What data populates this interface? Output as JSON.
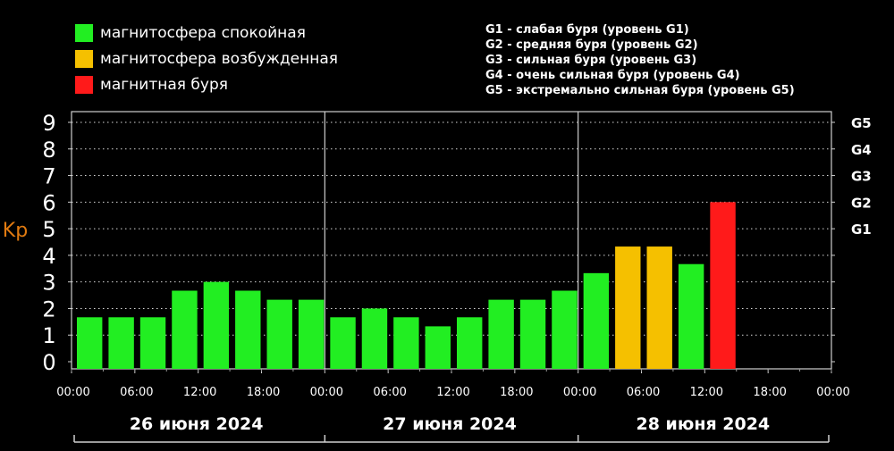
{
  "legend": [
    {
      "label": "магнитосфера спокойная",
      "color": "#22ee22"
    },
    {
      "label": "магнитосфера возбужденная",
      "color": "#f5c000"
    },
    {
      "label": "магнитная буря",
      "color": "#ff1a1a"
    }
  ],
  "storm_levels": [
    "G1 - слабая буря (уровень G1)",
    "G2 - средняя буря (уровень G2)",
    "G3 - сильная буря (уровень G3)",
    "G4 - очень сильная буря (уровень G4)",
    "G5 - экстремально сильная буря (уровень G5)"
  ],
  "chart_data": {
    "type": "bar",
    "ylabel": "Kp",
    "ylim": [
      0,
      9
    ],
    "yticks": [
      "0",
      "1",
      "2",
      "3",
      "4",
      "5",
      "6",
      "7",
      "8",
      "9"
    ],
    "g_levels": [
      {
        "label": "G1",
        "kp": 5
      },
      {
        "label": "G2",
        "kp": 6
      },
      {
        "label": "G3",
        "kp": 7
      },
      {
        "label": "G4",
        "kp": 8
      },
      {
        "label": "G5",
        "kp": 9
      }
    ],
    "xtick_labels": [
      "00:00",
      "06:00",
      "12:00",
      "18:00",
      "00:00",
      "06:00",
      "12:00",
      "18:00",
      "00:00",
      "06:00",
      "12:00",
      "18:00",
      "00:00"
    ],
    "days": [
      "26 июня 2024",
      "27 июня 2024",
      "28 июня 2024"
    ],
    "slots_per_day": 8,
    "values": [
      1.67,
      1.67,
      1.67,
      2.67,
      3.0,
      2.67,
      2.33,
      2.33,
      1.67,
      2.0,
      1.67,
      1.33,
      1.67,
      2.33,
      2.33,
      2.67,
      3.33,
      4.33,
      4.33,
      3.67,
      6.0
    ],
    "bar_colors": [
      "#22ee22",
      "#22ee22",
      "#22ee22",
      "#22ee22",
      "#22ee22",
      "#22ee22",
      "#22ee22",
      "#22ee22",
      "#22ee22",
      "#22ee22",
      "#22ee22",
      "#22ee22",
      "#22ee22",
      "#22ee22",
      "#22ee22",
      "#22ee22",
      "#22ee22",
      "#f5c000",
      "#f5c000",
      "#22ee22",
      "#ff1a1a"
    ],
    "grid": true
  }
}
